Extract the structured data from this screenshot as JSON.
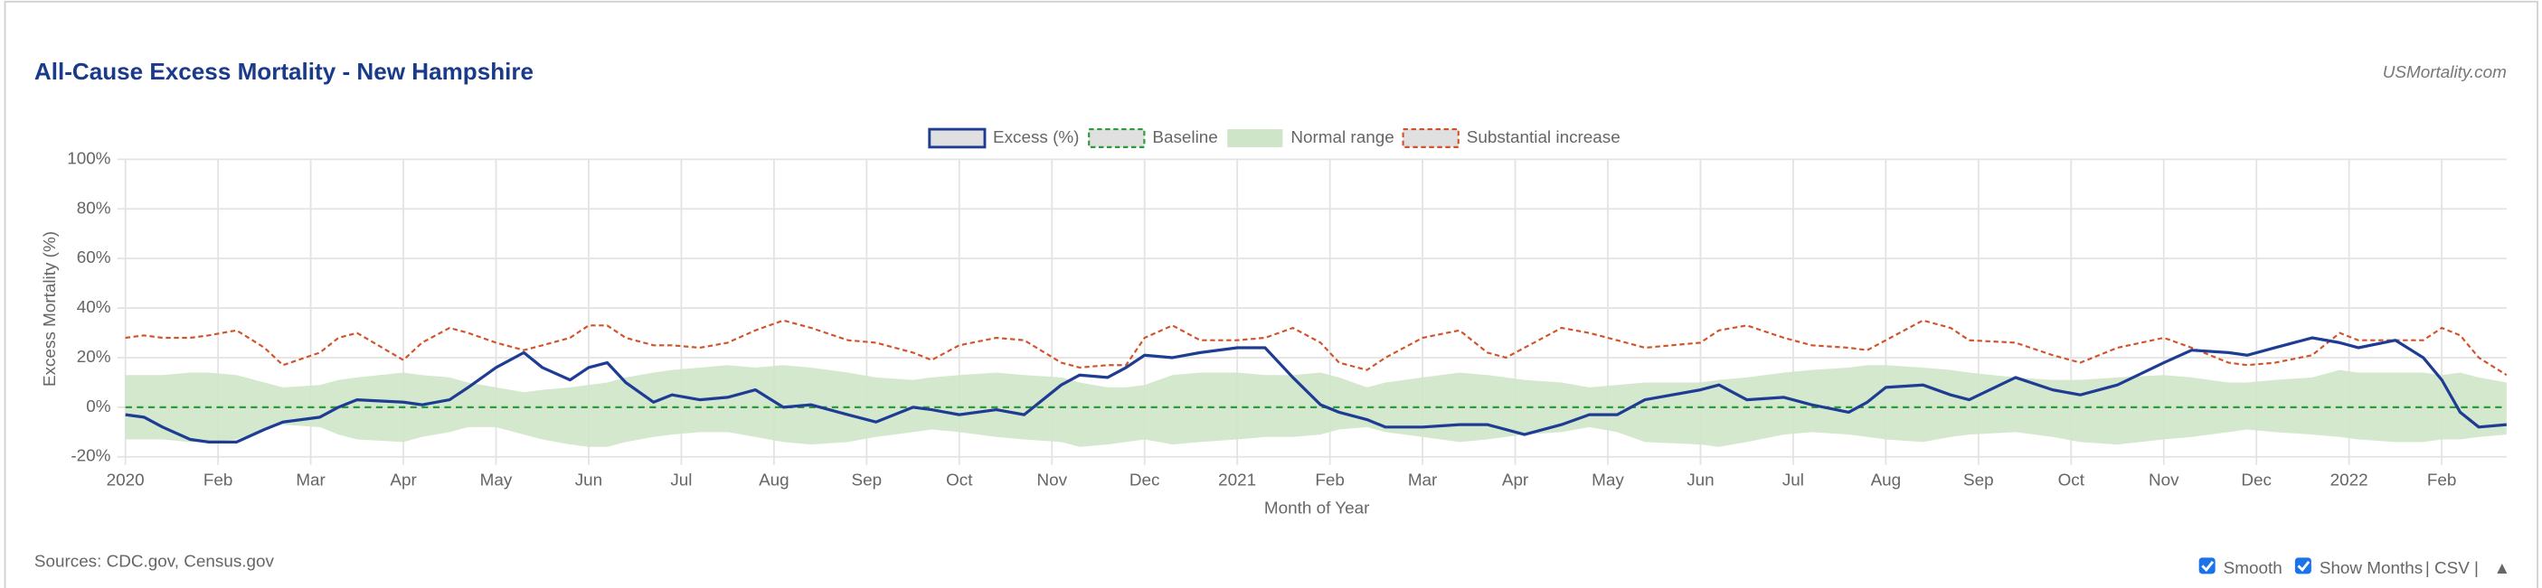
{
  "chart_data": {
    "type": "line",
    "title": "All-Cause Excess Mortality - New Hampshire",
    "brand": "USMortality.com",
    "source": "Sources: CDC.gov, Census.gov",
    "x_label": "Month of Year",
    "y_label": "Excess Mortality (%)",
    "legend": "top",
    "grid": true,
    "controls": {
      "smooth": "Smooth",
      "months": "Show Months",
      "csv": "| CSV |",
      "top": "▲"
    },
    "xlim": [
      0,
      25.7
    ],
    "xticks": [
      {
        "value": 0,
        "label": "2020"
      },
      {
        "value": 1,
        "label": "Feb"
      },
      {
        "value": 2,
        "label": "Mar"
      },
      {
        "value": 3,
        "label": "Apr"
      },
      {
        "value": 4,
        "label": "May"
      },
      {
        "value": 5,
        "label": "Jun"
      },
      {
        "value": 6,
        "label": "Jul"
      },
      {
        "value": 7,
        "label": "Aug"
      },
      {
        "value": 8,
        "label": "Sep"
      },
      {
        "value": 9,
        "label": "Oct"
      },
      {
        "value": 10,
        "label": "Nov"
      },
      {
        "value": 11,
        "label": "Dec"
      },
      {
        "value": 12,
        "label": "2021"
      },
      {
        "value": 13,
        "label": "Feb"
      },
      {
        "value": 14,
        "label": "Mar"
      },
      {
        "value": 15,
        "label": "Apr"
      },
      {
        "value": 16,
        "label": "May"
      },
      {
        "value": 17,
        "label": "Jun"
      },
      {
        "value": 18,
        "label": "Jul"
      },
      {
        "value": 19,
        "label": "Aug"
      },
      {
        "value": 20,
        "label": "Sep"
      },
      {
        "value": 21,
        "label": "Oct"
      },
      {
        "value": 22,
        "label": "Nov"
      },
      {
        "value": 23,
        "label": "Dec"
      },
      {
        "value": 24,
        "label": "2022"
      },
      {
        "value": 25,
        "label": "Feb"
      }
    ],
    "ylim": [
      -20,
      100
    ],
    "yticks": [
      {
        "value": -20,
        "label": "-20%"
      },
      {
        "value": 0,
        "label": "0%"
      },
      {
        "value": 20,
        "label": "20%"
      },
      {
        "value": 40,
        "label": "40%"
      },
      {
        "value": 60,
        "label": "60%"
      },
      {
        "value": 80,
        "label": "80%"
      },
      {
        "value": 100,
        "label": "100%"
      }
    ],
    "x": [
      0,
      0.2,
      0.4,
      0.7,
      0.9,
      1.2,
      1.5,
      1.7,
      2.1,
      2.3,
      2.5,
      3.0,
      3.2,
      3.5,
      3.7,
      4.0,
      4.3,
      4.5,
      4.8,
      5.0,
      5.2,
      5.4,
      5.7,
      5.9,
      6.2,
      6.5,
      6.8,
      7.1,
      7.4,
      7.8,
      8.1,
      8.5,
      8.7,
      9.0,
      9.4,
      9.7,
      10.1,
      10.3,
      10.6,
      10.8,
      11.0,
      11.3,
      11.6,
      12.0,
      12.3,
      12.6,
      12.9,
      13.1,
      13.4,
      13.6,
      14.0,
      14.4,
      14.7,
      14.9,
      15.1,
      15.5,
      15.8,
      16.1,
      16.4,
      17.0,
      17.2,
      17.5,
      17.9,
      18.2,
      18.6,
      18.8,
      19.0,
      19.4,
      19.7,
      19.9,
      20.4,
      20.8,
      21.1,
      21.5,
      22.0,
      22.3,
      22.7,
      22.9,
      23.2,
      23.6,
      23.9,
      24.1,
      24.5,
      24.8,
      25.0,
      25.2,
      25.4,
      25.7
    ],
    "series": [
      {
        "name": "Excess (%)",
        "color": "#1f3c94",
        "values": [
          -3,
          -4,
          -8,
          -13,
          -14,
          -14,
          -9,
          -6,
          -4,
          0,
          3,
          2,
          1,
          3,
          8,
          16,
          22,
          16,
          11,
          16,
          18,
          10,
          2,
          5,
          3,
          4,
          7,
          0,
          1,
          -3,
          -6,
          0,
          -1,
          -3,
          -1,
          -3,
          9,
          13,
          12,
          16,
          21,
          20,
          22,
          24,
          24,
          12,
          1,
          -2,
          -5,
          -8,
          -8,
          -7,
          -7,
          -9,
          -11,
          -7,
          -3,
          -3,
          3,
          7,
          9,
          3,
          4,
          1,
          -2,
          2,
          8,
          9,
          5,
          3,
          12,
          7,
          5,
          9,
          18,
          23,
          22,
          21,
          24,
          28,
          26,
          24,
          27,
          20,
          11,
          -2,
          -8,
          -7
        ]
      },
      {
        "name": "Baseline",
        "color": "#2e9b3a",
        "value": 0
      },
      {
        "name": "Normal range",
        "color": "#cfe5c8",
        "upper": [
          13,
          13,
          13,
          14,
          14,
          13,
          10,
          8,
          9,
          11,
          12,
          14,
          13,
          12,
          10,
          8,
          6,
          7,
          8,
          9,
          10,
          12,
          14,
          15,
          16,
          17,
          16,
          17,
          16,
          14,
          12,
          11,
          12,
          13,
          14,
          13,
          12,
          10,
          8,
          8,
          9,
          13,
          14,
          14,
          13,
          13,
          14,
          12,
          8,
          10,
          12,
          14,
          13,
          12,
          11,
          10,
          8,
          9,
          10,
          10,
          11,
          12,
          14,
          15,
          16,
          17,
          17,
          16,
          15,
          14,
          12,
          11,
          11,
          12,
          13,
          12,
          10,
          10,
          11,
          12,
          15,
          14,
          14,
          14,
          13,
          14,
          12,
          10
        ],
        "lower": [
          -13,
          -13,
          -13,
          -14,
          -14,
          -13,
          -9,
          -7,
          -8,
          -11,
          -13,
          -14,
          -12,
          -10,
          -8,
          -8,
          -11,
          -13,
          -15,
          -16,
          -16,
          -14,
          -12,
          -11,
          -10,
          -10,
          -12,
          -14,
          -15,
          -14,
          -12,
          -10,
          -9,
          -10,
          -12,
          -13,
          -14,
          -16,
          -15,
          -14,
          -13,
          -15,
          -14,
          -13,
          -12,
          -12,
          -11,
          -9,
          -8,
          -10,
          -12,
          -14,
          -13,
          -12,
          -11,
          -10,
          -8,
          -10,
          -14,
          -15,
          -16,
          -14,
          -11,
          -10,
          -11,
          -12,
          -13,
          -14,
          -12,
          -11,
          -10,
          -12,
          -14,
          -15,
          -13,
          -12,
          -10,
          -9,
          -10,
          -11,
          -12,
          -13,
          -14,
          -14,
          -13,
          -13,
          -12,
          -11
        ]
      },
      {
        "name": "Substantial increase",
        "color": "#d2532a",
        "values": [
          28,
          29,
          28,
          28,
          29,
          31,
          24,
          17,
          22,
          28,
          30,
          19,
          26,
          32,
          30,
          26,
          23,
          25,
          28,
          33,
          33,
          28,
          25,
          25,
          24,
          26,
          31,
          35,
          32,
          27,
          26,
          22,
          19,
          25,
          28,
          27,
          18,
          16,
          17,
          17,
          28,
          33,
          27,
          27,
          28,
          32,
          26,
          18,
          15,
          20,
          28,
          31,
          22,
          20,
          24,
          32,
          30,
          27,
          24,
          26,
          31,
          33,
          28,
          25,
          24,
          23,
          27,
          35,
          32,
          27,
          26,
          21,
          18,
          24,
          28,
          24,
          18,
          17,
          18,
          21,
          30,
          27,
          27,
          27,
          32,
          29,
          20,
          13
        ]
      }
    ]
  }
}
